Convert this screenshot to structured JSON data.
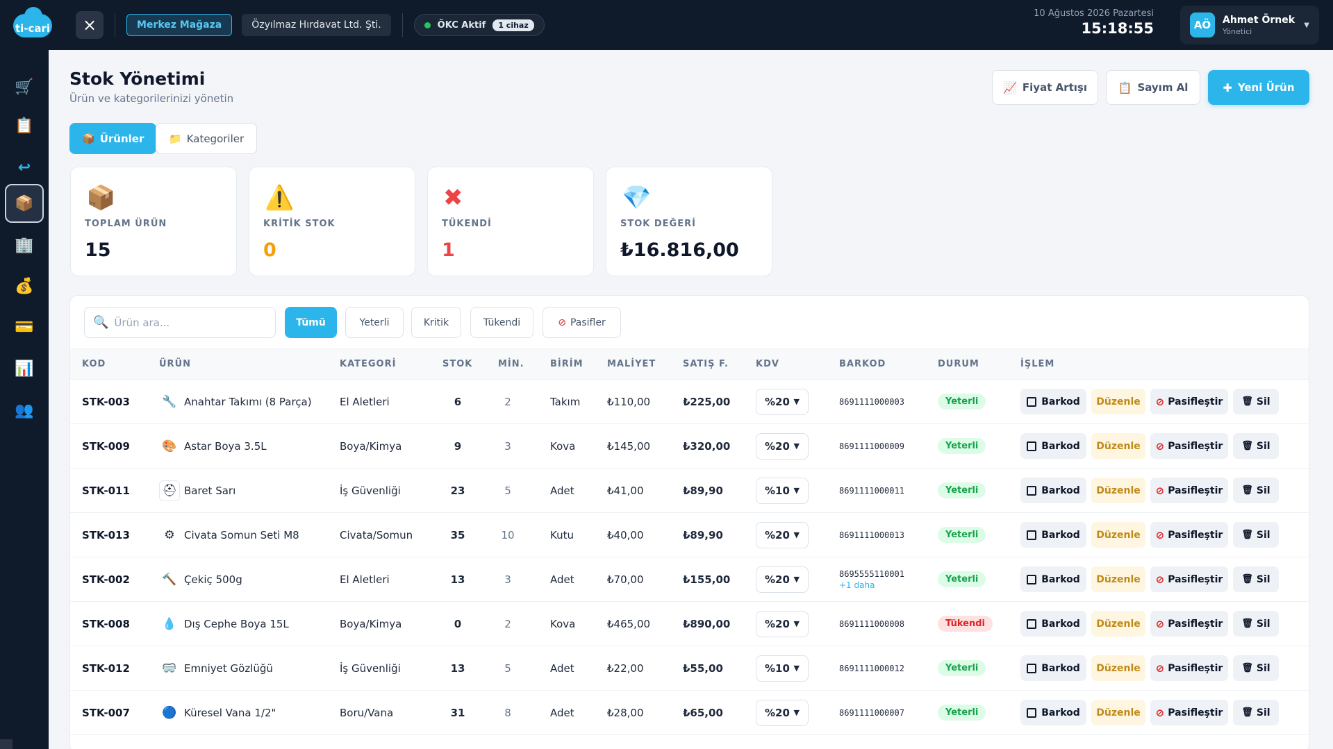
{
  "app": {
    "logo_text": "ti-cari"
  },
  "topbar": {
    "close_icon": "close-icon",
    "store": "Merkez Mağaza",
    "company": "Özyılmaz Hırdavat Ltd. Şti.",
    "okc_status": "ÖKC Aktif",
    "okc_devices": "1 cihaz",
    "status_color": "#22c55e",
    "date": "10 Ağustos 2026 Pazartesi",
    "time": "15:18:55"
  },
  "user": {
    "initials": "AÖ",
    "name": "Ahmet Örnek",
    "role": "Yönetici"
  },
  "sidebar": {
    "items": [
      {
        "icon": "cart-icon",
        "glyph": "🛒"
      },
      {
        "icon": "clipboard-icon",
        "glyph": "📋"
      },
      {
        "icon": "return-icon",
        "glyph": "↩"
      },
      {
        "icon": "package-icon",
        "glyph": "📦",
        "active": true
      },
      {
        "icon": "building-icon",
        "glyph": "🏢"
      },
      {
        "icon": "money-bag-icon",
        "glyph": "💰"
      },
      {
        "icon": "credit-card-icon",
        "glyph": "💳"
      },
      {
        "icon": "bar-chart-icon",
        "glyph": "📊"
      },
      {
        "icon": "users-icon",
        "glyph": "👥"
      }
    ]
  },
  "header": {
    "title": "Stok Yönetimi",
    "subtitle": "Ürün ve kategorilerinizi yönetin",
    "btn_price": "Fiyat Artışı",
    "btn_count": "Sayım Al",
    "btn_new": "Yeni Ürün"
  },
  "tabs": {
    "products": "Ürünler",
    "categories": "Kategoriler"
  },
  "stats": [
    {
      "label": "TOPLAM ÜRÜN",
      "value": "15",
      "icon": "package-icon",
      "color": "#0f172a"
    },
    {
      "label": "KRİTİK STOK",
      "value": "0",
      "icon": "warning-icon",
      "color": "#f59e0b"
    },
    {
      "label": "TÜKENDİ",
      "value": "1",
      "icon": "cross-icon",
      "color": "#ef4444"
    },
    {
      "label": "STOK DEĞERİ",
      "value": "₺16.816,00",
      "icon": "diamond-icon",
      "color": "#0f172a"
    }
  ],
  "search": {
    "placeholder": "Ürün ara..."
  },
  "filters": {
    "all": "Tümü",
    "ok": "Yeterli",
    "critical": "Kritik",
    "out": "Tükendi",
    "passive": "Pasifler"
  },
  "columns": {
    "kod": "KOD",
    "urun": "ÜRÜN",
    "kategori": "KATEGORİ",
    "stok": "STOK",
    "min": "MİN.",
    "birim": "BİRİM",
    "maliyet": "MALİYET",
    "satis": "SATIŞ F.",
    "kdv": "KDV",
    "barkod": "BARKOD",
    "durum": "DURUM",
    "islem": "İŞLEM"
  },
  "actions": {
    "barkod": "Barkod",
    "duzenle": "Düzenle",
    "pasif": "Pasifleştir",
    "sil": "Sil"
  },
  "rows": [
    {
      "kod": "STK-003",
      "icon": "wrench-icon",
      "glyph": "🔧",
      "urun": "Anahtar Takımı (8 Parça)",
      "kategori": "El Aletleri",
      "stok": "6",
      "min": "2",
      "birim": "Takım",
      "maliyet": "₺110,00",
      "satis": "₺225,00",
      "kdv": "%20",
      "barkod": "8691111000003",
      "barkod_more": "",
      "durum": "Yeterli",
      "status": "ok"
    },
    {
      "kod": "STK-009",
      "icon": "paint-icon",
      "glyph": "🎨",
      "urun": "Astar Boya 3.5L",
      "kategori": "Boya/Kimya",
      "stok": "9",
      "min": "3",
      "birim": "Kova",
      "maliyet": "₺145,00",
      "satis": "₺320,00",
      "kdv": "%20",
      "barkod": "8691111000009",
      "barkod_more": "",
      "durum": "Yeterli",
      "status": "ok"
    },
    {
      "kod": "STK-011",
      "icon": "helmet-icon",
      "glyph": "⛑",
      "urun": "Baret Sarı",
      "kategori": "İş Güvenliği",
      "stok": "23",
      "min": "5",
      "birim": "Adet",
      "maliyet": "₺41,00",
      "satis": "₺89,90",
      "kdv": "%10",
      "barkod": "8691111000011",
      "barkod_more": "",
      "durum": "Yeterli",
      "status": "ok",
      "boxed": true
    },
    {
      "kod": "STK-013",
      "icon": "gear-icon",
      "glyph": "⚙",
      "urun": "Civata Somun Seti M8",
      "kategori": "Civata/Somun",
      "stok": "35",
      "min": "10",
      "birim": "Kutu",
      "maliyet": "₺40,00",
      "satis": "₺89,90",
      "kdv": "%20",
      "barkod": "8691111000013",
      "barkod_more": "",
      "durum": "Yeterli",
      "status": "ok"
    },
    {
      "kod": "STK-002",
      "icon": "hammer-icon",
      "glyph": "🔨",
      "urun": "Çekiç 500g",
      "kategori": "El Aletleri",
      "stok": "13",
      "min": "3",
      "birim": "Adet",
      "maliyet": "₺70,00",
      "satis": "₺155,00",
      "kdv": "%20",
      "barkod": "8695555110001",
      "barkod_more": "+1 daha",
      "durum": "Yeterli",
      "status": "ok"
    },
    {
      "kod": "STK-008",
      "icon": "droplet-icon",
      "glyph": "💧",
      "urun": "Dış Cephe Boya 15L",
      "kategori": "Boya/Kimya",
      "stok": "0",
      "min": "2",
      "birim": "Kova",
      "maliyet": "₺465,00",
      "satis": "₺890,00",
      "kdv": "%20",
      "barkod": "8691111000008",
      "barkod_more": "",
      "durum": "Tükendi",
      "status": "out"
    },
    {
      "kod": "STK-012",
      "icon": "goggles-icon",
      "glyph": "🥽",
      "urun": "Emniyet Gözlüğü",
      "kategori": "İş Güvenliği",
      "stok": "13",
      "min": "5",
      "birim": "Adet",
      "maliyet": "₺22,00",
      "satis": "₺55,00",
      "kdv": "%10",
      "barkod": "8691111000012",
      "barkod_more": "",
      "durum": "Yeterli",
      "status": "ok"
    },
    {
      "kod": "STK-007",
      "icon": "blue-circle-icon",
      "glyph": "🔵",
      "urun": "Küresel Vana 1/2\"",
      "kategori": "Boru/Vana",
      "stok": "31",
      "min": "8",
      "birim": "Adet",
      "maliyet": "₺28,00",
      "satis": "₺65,00",
      "kdv": "%20",
      "barkod": "8691111000007",
      "barkod_more": "",
      "durum": "Yeterli",
      "status": "ok"
    }
  ]
}
